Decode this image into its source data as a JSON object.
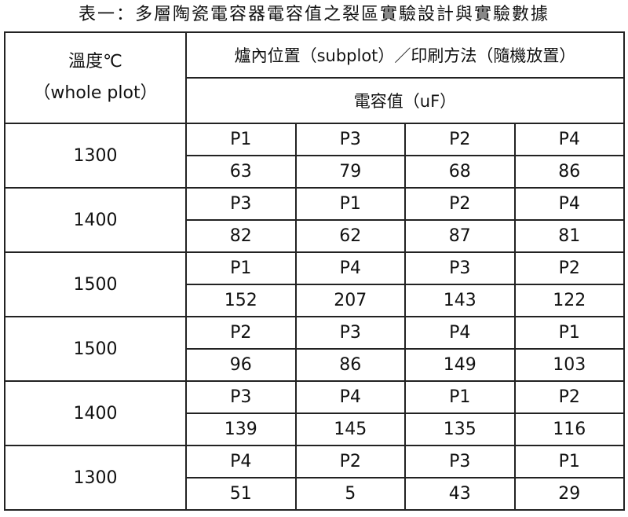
{
  "title": "表一：多層陶瓷電容器電容值之裂區實驗設計與實驗數據",
  "header": {
    "temperature": "溫度℃",
    "whole_plot": "（whole plot）",
    "subplot": "爐內位置（subplot）／印刷方法（隨機放置）",
    "capacitance": "電容值（uF）"
  },
  "rows": [
    {
      "temp": "1300",
      "positions": [
        "P1",
        "P3",
        "P2",
        "P4"
      ],
      "values": [
        "63",
        "79",
        "68",
        "86"
      ]
    },
    {
      "temp": "1400",
      "positions": [
        "P3",
        "P1",
        "P2",
        "P4"
      ],
      "values": [
        "82",
        "62",
        "87",
        "81"
      ]
    },
    {
      "temp": "1500",
      "positions": [
        "P1",
        "P4",
        "P3",
        "P2"
      ],
      "values": [
        "152",
        "207",
        "143",
        "122"
      ]
    },
    {
      "temp": "1500",
      "positions": [
        "P2",
        "P3",
        "P4",
        "P1"
      ],
      "values": [
        "96",
        "86",
        "149",
        "103"
      ]
    },
    {
      "temp": "1400",
      "positions": [
        "P3",
        "P4",
        "P1",
        "P2"
      ],
      "values": [
        "139",
        "145",
        "135",
        "116"
      ]
    },
    {
      "temp": "1300",
      "positions": [
        "P4",
        "P2",
        "P3",
        "P1"
      ],
      "values": [
        "51",
        "5",
        "43",
        "29"
      ]
    }
  ]
}
